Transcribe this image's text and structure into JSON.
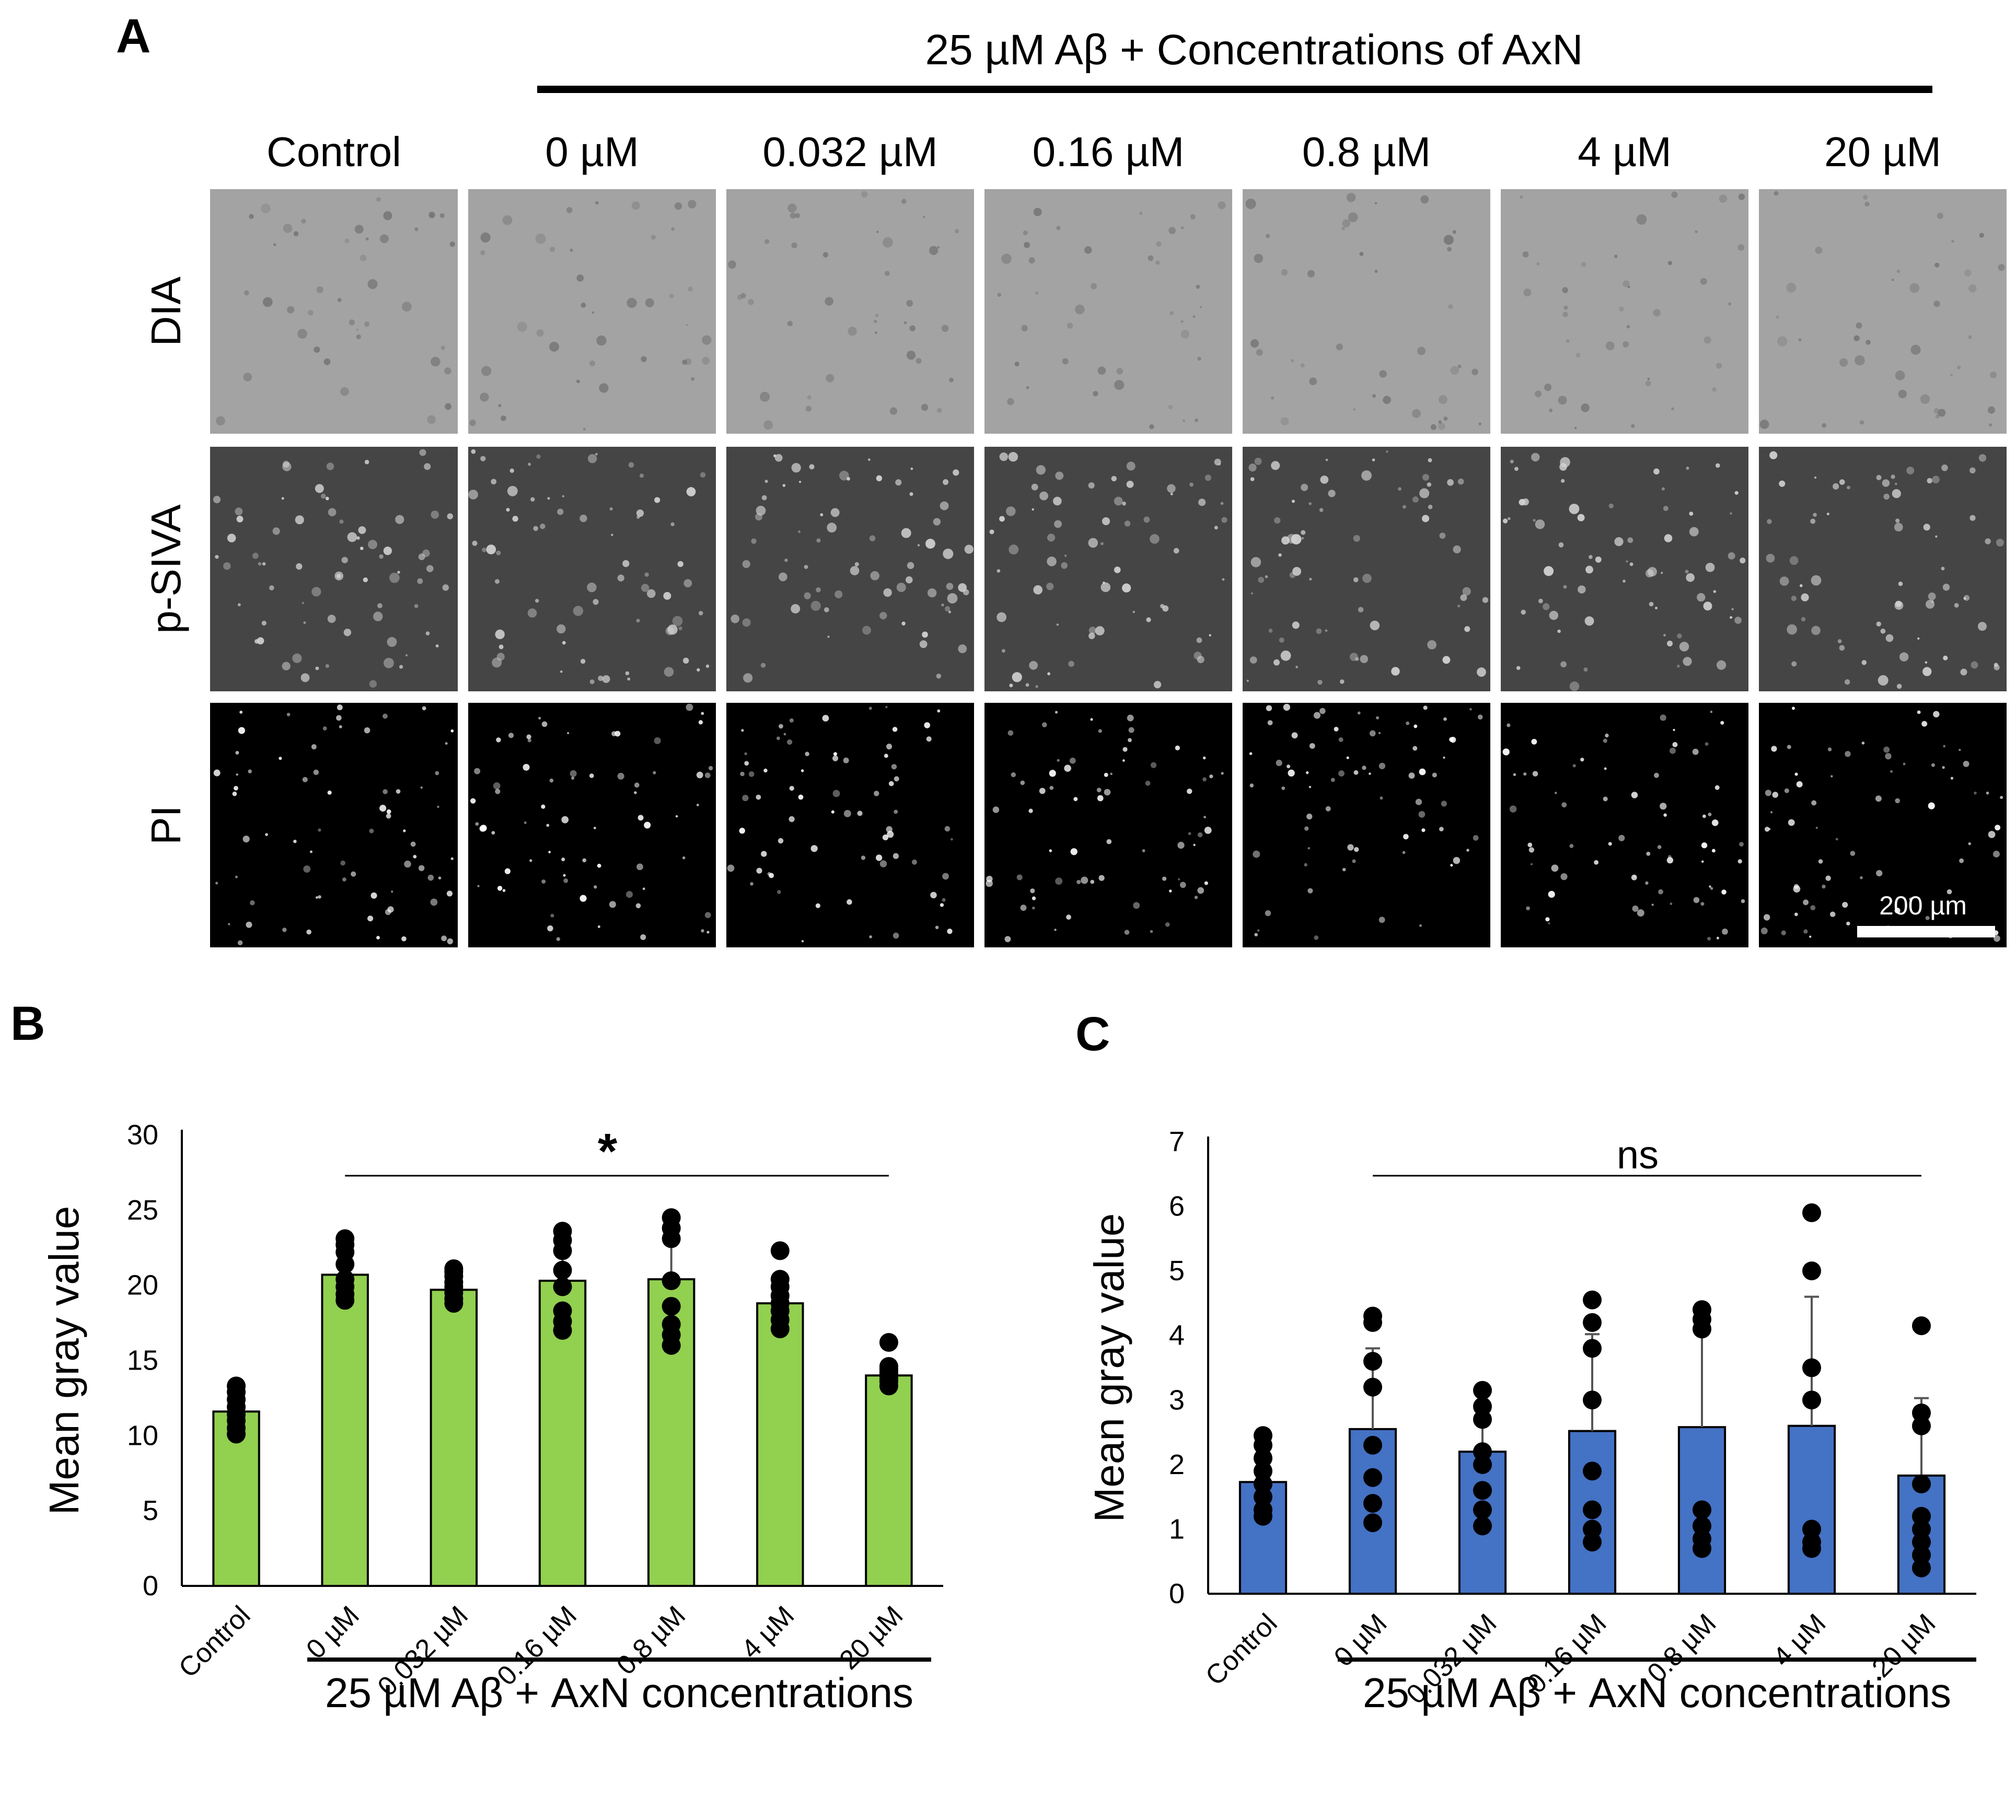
{
  "panel_a": {
    "letter": "A",
    "group_header": "25 µM Aβ + Concentrations of AxN",
    "columns": [
      "Control",
      "0 µM",
      "0.032 µM",
      "0.16 µM",
      "0.8 µM",
      "4 µM",
      "20 µM"
    ],
    "rows": [
      "DIA",
      "p-SIVA",
      "PI"
    ],
    "scale_bar_label": "200 µm",
    "row_styles": {
      "DIA": {
        "bg": "#a3a3a3",
        "dot": "#777777"
      },
      "p-SIVA": {
        "bg": "#454545",
        "dot": "#d2d2d2"
      },
      "PI": {
        "bg": "#000000",
        "dot": "#ffffff"
      }
    }
  },
  "chart_data": [
    {
      "panel": "B",
      "type": "bar",
      "ylabel": "Mean gray value",
      "group_label": "25 µM Aβ + AxN concentrations",
      "significance": "*",
      "categories": [
        "Control",
        "0 µM",
        "0.032 µM",
        "0.16 µM",
        "0.8 µM",
        "4 µM",
        "20 µM"
      ],
      "values": [
        11.6,
        20.7,
        19.7,
        20.3,
        20.4,
        18.8,
        14.0
      ],
      "errors": [
        1.0,
        1.3,
        0.8,
        2.0,
        2.7,
        1.5,
        0.8
      ],
      "points": [
        [
          10.1,
          10.5,
          11.0,
          11.4,
          11.9,
          12.4,
          12.9,
          13.3
        ],
        [
          19.0,
          19.4,
          19.9,
          20.4,
          21.4,
          22.2,
          22.7,
          23.1
        ],
        [
          18.8,
          19.1,
          19.5,
          19.9,
          20.2,
          20.6,
          20.9,
          21.1
        ],
        [
          17.0,
          17.6,
          18.3,
          19.9,
          21.0,
          22.3,
          23.0,
          23.6
        ],
        [
          16.0,
          16.7,
          17.4,
          18.6,
          20.3,
          23.1,
          23.8,
          24.5
        ],
        [
          17.1,
          17.7,
          18.3,
          18.8,
          19.3,
          19.9,
          20.4,
          22.3
        ],
        [
          13.3,
          13.6,
          13.8,
          14.0,
          14.2,
          14.4,
          14.6,
          16.2
        ]
      ],
      "ylim": [
        0,
        30
      ],
      "yticks": [
        0,
        5,
        10,
        15,
        20,
        25,
        30
      ],
      "color": "#92d050"
    },
    {
      "panel": "C",
      "type": "bar",
      "ylabel": "Mean gray value",
      "group_label": "25 µM Aβ + AxN concentrations",
      "significance": "ns",
      "categories": [
        "Control",
        "0 µM",
        "0.032 µM",
        "0.16 µM",
        "0.8 µM",
        "4 µM",
        "20 µM"
      ],
      "values": [
        1.73,
        2.55,
        2.2,
        2.52,
        2.58,
        2.6,
        1.83
      ],
      "errors": [
        0.45,
        1.25,
        0.55,
        1.5,
        1.9,
        2.0,
        1.2
      ],
      "points": [
        [
          1.2,
          1.3,
          1.5,
          1.7,
          1.9,
          2.1,
          2.3,
          2.45
        ],
        [
          1.1,
          1.4,
          1.8,
          2.3,
          3.2,
          3.6,
          4.2,
          4.3
        ],
        [
          1.05,
          1.3,
          1.6,
          2.0,
          2.2,
          2.7,
          2.9,
          3.15
        ],
        [
          0.8,
          1.0,
          1.3,
          1.9,
          3.0,
          3.8,
          4.2,
          4.55
        ],
        [
          0.7,
          0.85,
          1.05,
          1.3,
          4.1,
          4.25,
          4.4
        ],
        [
          0.7,
          0.8,
          1.0,
          3.0,
          3.5,
          5.0,
          5.9
        ],
        [
          0.4,
          0.6,
          0.8,
          1.0,
          1.2,
          1.7,
          2.6,
          2.8,
          4.15
        ]
      ],
      "ylim": [
        0,
        7
      ],
      "yticks": [
        0,
        1,
        2,
        3,
        4,
        5,
        6,
        7
      ],
      "color": "#4472c4"
    }
  ]
}
